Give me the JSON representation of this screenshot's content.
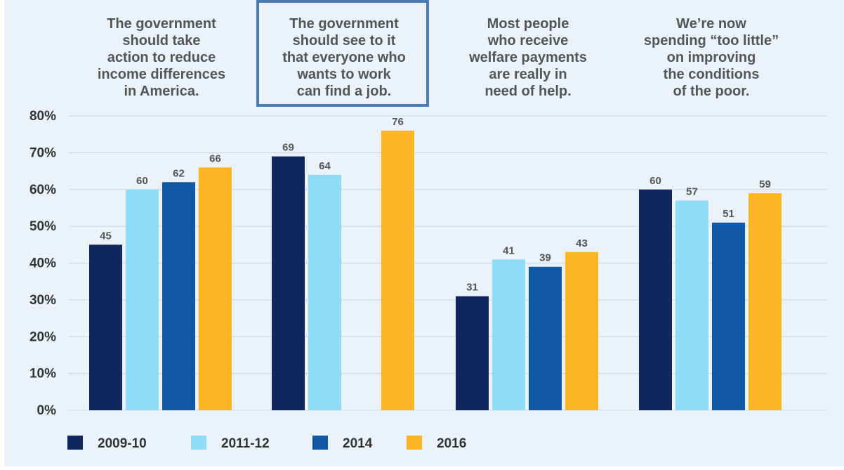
{
  "chart_data": {
    "type": "bar",
    "title": "",
    "xlabel": "",
    "ylabel": "",
    "ylim": [
      0,
      80
    ],
    "yticks": [
      "0%",
      "10%",
      "20%",
      "30%",
      "40%",
      "50%",
      "60%",
      "70%",
      "80%"
    ],
    "grid": true,
    "legend_position": "bottom-left",
    "highlighted_category_index": 1,
    "categories": [
      [
        "The government",
        "should take",
        "action to reduce",
        "income differences",
        "in America."
      ],
      [
        "The government",
        "should see to it",
        "that everyone who",
        "wants to work",
        "can find a job."
      ],
      [
        "Most people",
        "who receive",
        "welfare payments",
        "are really in",
        "need of help."
      ],
      [
        "We’re now",
        "spending “too little”",
        "on improving",
        "the conditions",
        "of the poor."
      ]
    ],
    "series": [
      {
        "name": "2009-10",
        "color": "#13275f",
        "values": [
          45,
          69,
          31,
          60
        ]
      },
      {
        "name": "2011-12",
        "color": "#8fdcf8",
        "values": [
          60,
          64,
          41,
          57
        ]
      },
      {
        "name": "2014",
        "color": "#0f58a4",
        "values": [
          62,
          null,
          39,
          51
        ]
      },
      {
        "name": "2016",
        "color": "#fbb423",
        "values": [
          66,
          76,
          43,
          59
        ]
      }
    ],
    "colors": {
      "panel_background": "#ecf2fa",
      "highlight_box": "#4a7bb7",
      "grid": "#c9d3df",
      "axis_text": "#333333"
    }
  }
}
